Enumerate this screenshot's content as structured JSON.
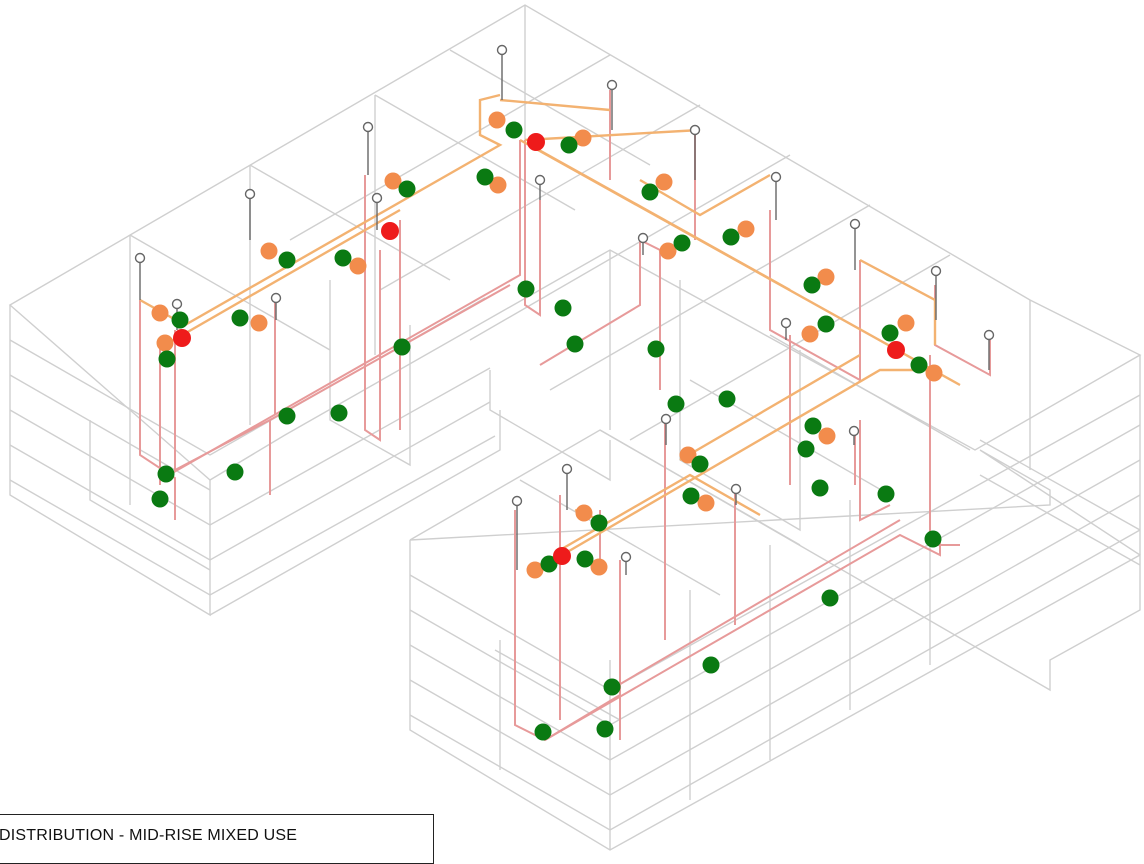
{
  "title_block": {
    "text": "DISTRIBUTION - MID-RISE MIXED USE"
  },
  "colors": {
    "building_outline": "#cfcfcf",
    "pipe_red": "#e79a9a",
    "pipe_orange": "#f3b271",
    "marker_green": "#0a7a12",
    "marker_orange": "#f28c4c",
    "marker_red": "#ee1b1b",
    "riser": "#555555"
  },
  "legend_items": []
}
